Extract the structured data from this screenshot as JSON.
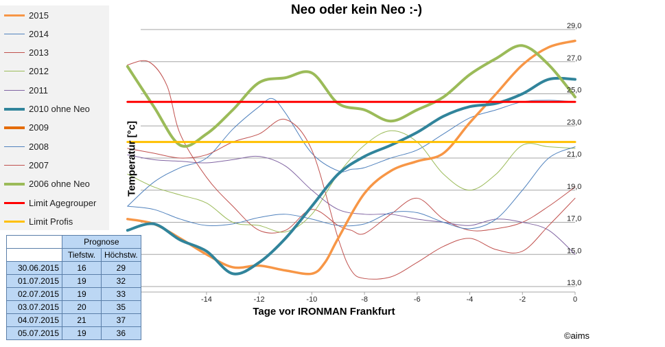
{
  "chart_data": {
    "type": "line",
    "title": "Neo oder kein Neo :-)",
    "xlabel": "Tage vor IRONMAN Frankfurt",
    "ylabel": "Temperatur  [°c]",
    "xlim": [
      -16.5,
      0
    ],
    "ylim": [
      13,
      29
    ],
    "x_ticks": [
      -14,
      -12,
      -10,
      -8,
      -6,
      -4,
      -2,
      0
    ],
    "y_ticks": [
      13,
      15,
      17,
      19,
      21,
      23,
      25,
      27,
      29
    ],
    "y_tick_labels": [
      "13,0",
      "15,0",
      "17,0",
      "19,0",
      "21,0",
      "23,0",
      "25,0",
      "27,0",
      "29,0"
    ],
    "grid": "horizontal",
    "legend_position": "left",
    "series": [
      {
        "name": "2015",
        "color": "#f79646",
        "width": 3.5,
        "x": [
          -17,
          -16,
          -15,
          -14,
          -13,
          -12,
          -11,
          -10,
          -9.5,
          -9,
          -8,
          -7,
          -6,
          -5,
          -4,
          -3,
          -2,
          -1,
          0
        ],
        "y": [
          17.2,
          16.9,
          16.0,
          15.0,
          14.2,
          14.3,
          14.0,
          13.8,
          14.5,
          16.0,
          18.8,
          20.2,
          20.8,
          21.3,
          23.2,
          25.0,
          26.8,
          27.9,
          28.3
        ]
      },
      {
        "name": "2014",
        "color": "#4f81bd",
        "width": 1,
        "x": [
          -17,
          -16,
          -15,
          -14,
          -13,
          -12,
          -11.5,
          -11,
          -10,
          -9,
          -8.5,
          -8,
          -7,
          -6,
          -5,
          -4,
          -3,
          -2,
          -1,
          0
        ],
        "y": [
          18.0,
          19.5,
          20.4,
          21.0,
          22.8,
          24.2,
          24.7,
          23.8,
          21.3,
          20.2,
          20.3,
          20.4,
          21.0,
          21.5,
          22.5,
          23.5,
          24.0,
          24.5,
          24.6,
          24.5
        ]
      },
      {
        "name": "2013",
        "color": "#c0504d",
        "width": 1,
        "x": [
          -17,
          -16.2,
          -15.5,
          -15,
          -14,
          -13,
          -12,
          -11,
          -10,
          -9,
          -8.5,
          -8,
          -7,
          -6,
          -5,
          -4,
          -3,
          -2,
          -1,
          0
        ],
        "y": [
          26.8,
          27.0,
          25.5,
          22.5,
          19.8,
          18.0,
          16.5,
          16.5,
          17.8,
          16.8,
          16.5,
          16.3,
          17.5,
          18.5,
          17.2,
          16.5,
          16.6,
          17.0,
          18.0,
          19.2
        ]
      },
      {
        "name": "2012",
        "color": "#9bbb59",
        "width": 1,
        "x": [
          -17,
          -16,
          -15,
          -14,
          -13,
          -12,
          -11,
          -10,
          -9,
          -8,
          -7,
          -6,
          -5,
          -4,
          -3,
          -2,
          -1,
          0
        ],
        "y": [
          20.0,
          19.2,
          18.7,
          18.2,
          17.0,
          16.8,
          16.4,
          17.5,
          20.0,
          21.8,
          22.7,
          22.0,
          20.0,
          19.0,
          20.0,
          21.8,
          21.7,
          21.6
        ]
      },
      {
        "name": "2011",
        "color": "#8064a2",
        "width": 1,
        "x": [
          -17,
          -16,
          -15,
          -14,
          -13,
          -12,
          -11,
          -10,
          -9,
          -8,
          -7,
          -6,
          -5,
          -4,
          -3,
          -2,
          -1,
          0
        ],
        "y": [
          21.2,
          20.9,
          20.8,
          20.7,
          20.9,
          21.1,
          20.5,
          19.0,
          17.8,
          17.5,
          17.5,
          17.2,
          17.0,
          16.8,
          17.2,
          17.0,
          16.5,
          15.0
        ]
      },
      {
        "name": "2010 ohne Neo",
        "color": "#31849b",
        "width": 4,
        "x": [
          -17,
          -16,
          -15,
          -14,
          -13,
          -12,
          -11,
          -10,
          -9,
          -8,
          -7,
          -6,
          -5,
          -4,
          -3,
          -2,
          -1,
          0
        ],
        "y": [
          16.5,
          16.9,
          15.9,
          15.2,
          13.8,
          14.5,
          16.0,
          18.0,
          20.0,
          21.1,
          21.8,
          22.6,
          23.6,
          24.2,
          24.4,
          25.0,
          25.9,
          25.9
        ]
      },
      {
        "name": "2009",
        "color": "#e46c0a",
        "width": 4,
        "x": [],
        "y": []
      },
      {
        "name": "2008",
        "color": "#4f81bd",
        "width": 1,
        "x": [
          -17,
          -16,
          -15,
          -14,
          -13,
          -12,
          -11,
          -10,
          -9,
          -8,
          -7,
          -6,
          -5,
          -4,
          -3,
          -2,
          -1,
          0
        ],
        "y": [
          18.0,
          17.8,
          17.2,
          16.8,
          16.9,
          17.3,
          17.5,
          17.2,
          16.8,
          16.9,
          17.6,
          17.6,
          17.0,
          16.6,
          17.2,
          19.0,
          21.0,
          21.7
        ]
      },
      {
        "name": "2007",
        "color": "#c0504d",
        "width": 1,
        "x": [
          -17,
          -16,
          -15,
          -14,
          -13,
          -12,
          -11,
          -10,
          -9,
          -8.5,
          -8,
          -7,
          -6,
          -5,
          -4,
          -3,
          -2,
          -1,
          0
        ],
        "y": [
          21.6,
          21.3,
          21.0,
          21.2,
          22.0,
          22.5,
          23.4,
          21.5,
          16.0,
          14.0,
          13.5,
          13.6,
          14.5,
          15.5,
          16.0,
          15.3,
          15.2,
          16.8,
          18.5
        ]
      },
      {
        "name": "2006 ohne Neo",
        "color": "#9bbb59",
        "width": 4,
        "x": [
          -17,
          -16,
          -15,
          -14,
          -13,
          -12,
          -11,
          -10,
          -9,
          -8,
          -7,
          -6,
          -5,
          -4,
          -3,
          -2,
          -1,
          0
        ],
        "y": [
          26.7,
          24.2,
          21.8,
          22.5,
          24.0,
          25.7,
          26.0,
          26.3,
          24.4,
          24.0,
          23.3,
          24.0,
          24.8,
          26.2,
          27.2,
          28.0,
          26.8,
          24.8
        ]
      },
      {
        "name": "Limit Agegrouper",
        "color": "#ff0000",
        "width": 3,
        "x": [
          -17,
          0
        ],
        "y": [
          24.5,
          24.5
        ]
      },
      {
        "name": "Limit Profis",
        "color": "#ffc000",
        "width": 3,
        "x": [
          -17,
          0
        ],
        "y": [
          22.0,
          22.0
        ]
      }
    ]
  },
  "forecast": {
    "header": "Prognose",
    "columns": [
      "Tiefstw.",
      "Höchstw."
    ],
    "rows": [
      {
        "date": "30.06.2015",
        "low": "16",
        "high": "29"
      },
      {
        "date": "01.07.2015",
        "low": "19",
        "high": "32"
      },
      {
        "date": "02.07.2015",
        "low": "19",
        "high": "33"
      },
      {
        "date": "03.07.2015",
        "low": "20",
        "high": "35"
      },
      {
        "date": "04.07.2015",
        "low": "21",
        "high": "37"
      },
      {
        "date": "05.07.2015",
        "low": "19",
        "high": "36"
      }
    ]
  },
  "copyright": "©aims"
}
